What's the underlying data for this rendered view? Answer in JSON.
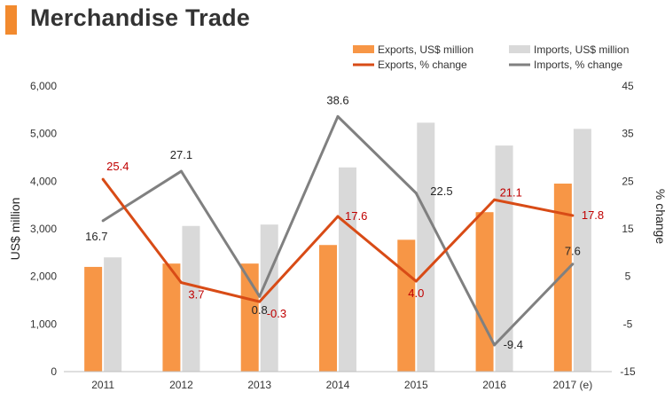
{
  "header": {
    "title": "Merchandise Trade"
  },
  "colors": {
    "exports_bar": "#f79646",
    "imports_bar": "#d9d9d9",
    "exports_line": "#d84b16",
    "imports_line": "#808080",
    "exports_label": "#c00000",
    "imports_label": "#262626",
    "title_accent": "#f28a2e"
  },
  "chart_data": {
    "type": "bar",
    "title": "Merchandise Trade",
    "categories": [
      "2011",
      "2012",
      "2013",
      "2014",
      "2015",
      "2016",
      "2017 (e)"
    ],
    "ylabel": "US$ million",
    "y2label": "% change",
    "ylim": [
      0,
      6000
    ],
    "y_ticks": [
      "0",
      "1,000",
      "2,000",
      "3,000",
      "4,000",
      "5,000",
      "6,000"
    ],
    "y2lim": [
      -15,
      45
    ],
    "y2_ticks": [
      "-15",
      "-5",
      "5",
      "15",
      "25",
      "35",
      "45"
    ],
    "series": [
      {
        "name": "Exports, US$ million",
        "kind": "bar",
        "axis": "left",
        "values": [
          2200,
          2270,
          2270,
          2660,
          2770,
          3350,
          3950
        ]
      },
      {
        "name": "Imports, US$ million",
        "kind": "bar",
        "axis": "left",
        "values": [
          2400,
          3060,
          3090,
          4290,
          5230,
          4750,
          5100
        ]
      },
      {
        "name": "Exports, % change",
        "kind": "line",
        "axis": "right",
        "values": [
          25.4,
          3.7,
          -0.3,
          17.6,
          4.0,
          21.1,
          17.8
        ],
        "labels": [
          "25.4",
          "3.7",
          "-0.3",
          "17.6",
          "4.0",
          "21.1",
          "17.8"
        ]
      },
      {
        "name": "Imports, % change",
        "kind": "line",
        "axis": "right",
        "values": [
          16.7,
          27.1,
          0.8,
          38.6,
          22.5,
          -9.4,
          7.6
        ],
        "labels": [
          "16.7",
          "27.1",
          "0.8",
          "38.6",
          "22.5",
          "-9.4",
          "7.6"
        ]
      }
    ],
    "legend": [
      "Exports, US$ million",
      "Imports, US$ million",
      "Exports, % change",
      "Imports, % change"
    ],
    "legend_position": "top-right"
  }
}
